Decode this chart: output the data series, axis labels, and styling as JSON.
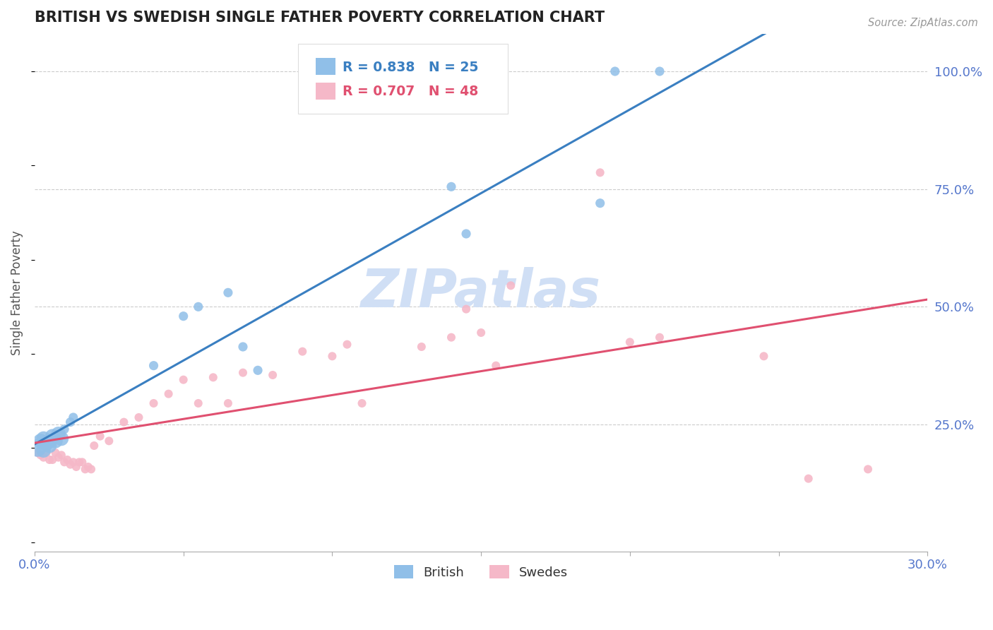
{
  "title": "BRITISH VS SWEDISH SINGLE FATHER POVERTY CORRELATION CHART",
  "source": "Source: ZipAtlas.com",
  "ylabel": "Single Father Poverty",
  "xlim": [
    0.0,
    0.3
  ],
  "ylim": [
    -0.02,
    1.08
  ],
  "xticks": [
    0.0,
    0.05,
    0.1,
    0.15,
    0.2,
    0.25,
    0.3
  ],
  "xtick_labels": [
    "0.0%",
    "",
    "",
    "",
    "",
    "",
    "30.0%"
  ],
  "ytick_vals": [
    0.25,
    0.5,
    0.75,
    1.0
  ],
  "ytick_labels": [
    "25.0%",
    "50.0%",
    "75.0%",
    "100.0%"
  ],
  "british_color": "#90bfe8",
  "swedes_color": "#f5b8c8",
  "british_line_color": "#3a7fc1",
  "swedes_line_color": "#e05070",
  "british_r": 0.838,
  "british_n": 25,
  "swedes_r": 0.707,
  "swedes_n": 48,
  "watermark": "ZIPatlas",
  "watermark_color": "#d0dff5",
  "tick_color": "#5577cc",
  "grid_color": "#cccccc",
  "british_x": [
    0.001,
    0.002,
    0.003,
    0.003,
    0.004,
    0.005,
    0.005,
    0.006,
    0.007,
    0.008,
    0.009,
    0.01,
    0.012,
    0.013,
    0.04,
    0.05,
    0.055,
    0.065,
    0.07,
    0.075,
    0.14,
    0.145,
    0.19,
    0.195,
    0.21
  ],
  "british_y": [
    0.2,
    0.215,
    0.22,
    0.195,
    0.21,
    0.215,
    0.205,
    0.225,
    0.215,
    0.23,
    0.22,
    0.24,
    0.255,
    0.265,
    0.375,
    0.48,
    0.5,
    0.53,
    0.415,
    0.365,
    0.755,
    0.655,
    0.72,
    1.0,
    1.0
  ],
  "swedes_x": [
    0.001,
    0.002,
    0.003,
    0.004,
    0.005,
    0.006,
    0.007,
    0.008,
    0.009,
    0.01,
    0.011,
    0.012,
    0.013,
    0.014,
    0.015,
    0.016,
    0.017,
    0.018,
    0.019,
    0.02,
    0.022,
    0.025,
    0.03,
    0.035,
    0.04,
    0.045,
    0.05,
    0.055,
    0.06,
    0.065,
    0.07,
    0.08,
    0.09,
    0.1,
    0.105,
    0.11,
    0.13,
    0.14,
    0.145,
    0.15,
    0.155,
    0.16,
    0.19,
    0.2,
    0.21,
    0.245,
    0.26,
    0.28
  ],
  "swedes_y": [
    0.19,
    0.185,
    0.18,
    0.19,
    0.175,
    0.175,
    0.19,
    0.18,
    0.185,
    0.17,
    0.175,
    0.165,
    0.17,
    0.16,
    0.17,
    0.17,
    0.155,
    0.16,
    0.155,
    0.205,
    0.225,
    0.215,
    0.255,
    0.265,
    0.295,
    0.315,
    0.345,
    0.295,
    0.35,
    0.295,
    0.36,
    0.355,
    0.405,
    0.395,
    0.42,
    0.295,
    0.415,
    0.435,
    0.495,
    0.445,
    0.375,
    0.545,
    0.785,
    0.425,
    0.435,
    0.395,
    0.135,
    0.155
  ],
  "british_size_large": 220,
  "british_size_small": 90,
  "swedes_size": 75
}
